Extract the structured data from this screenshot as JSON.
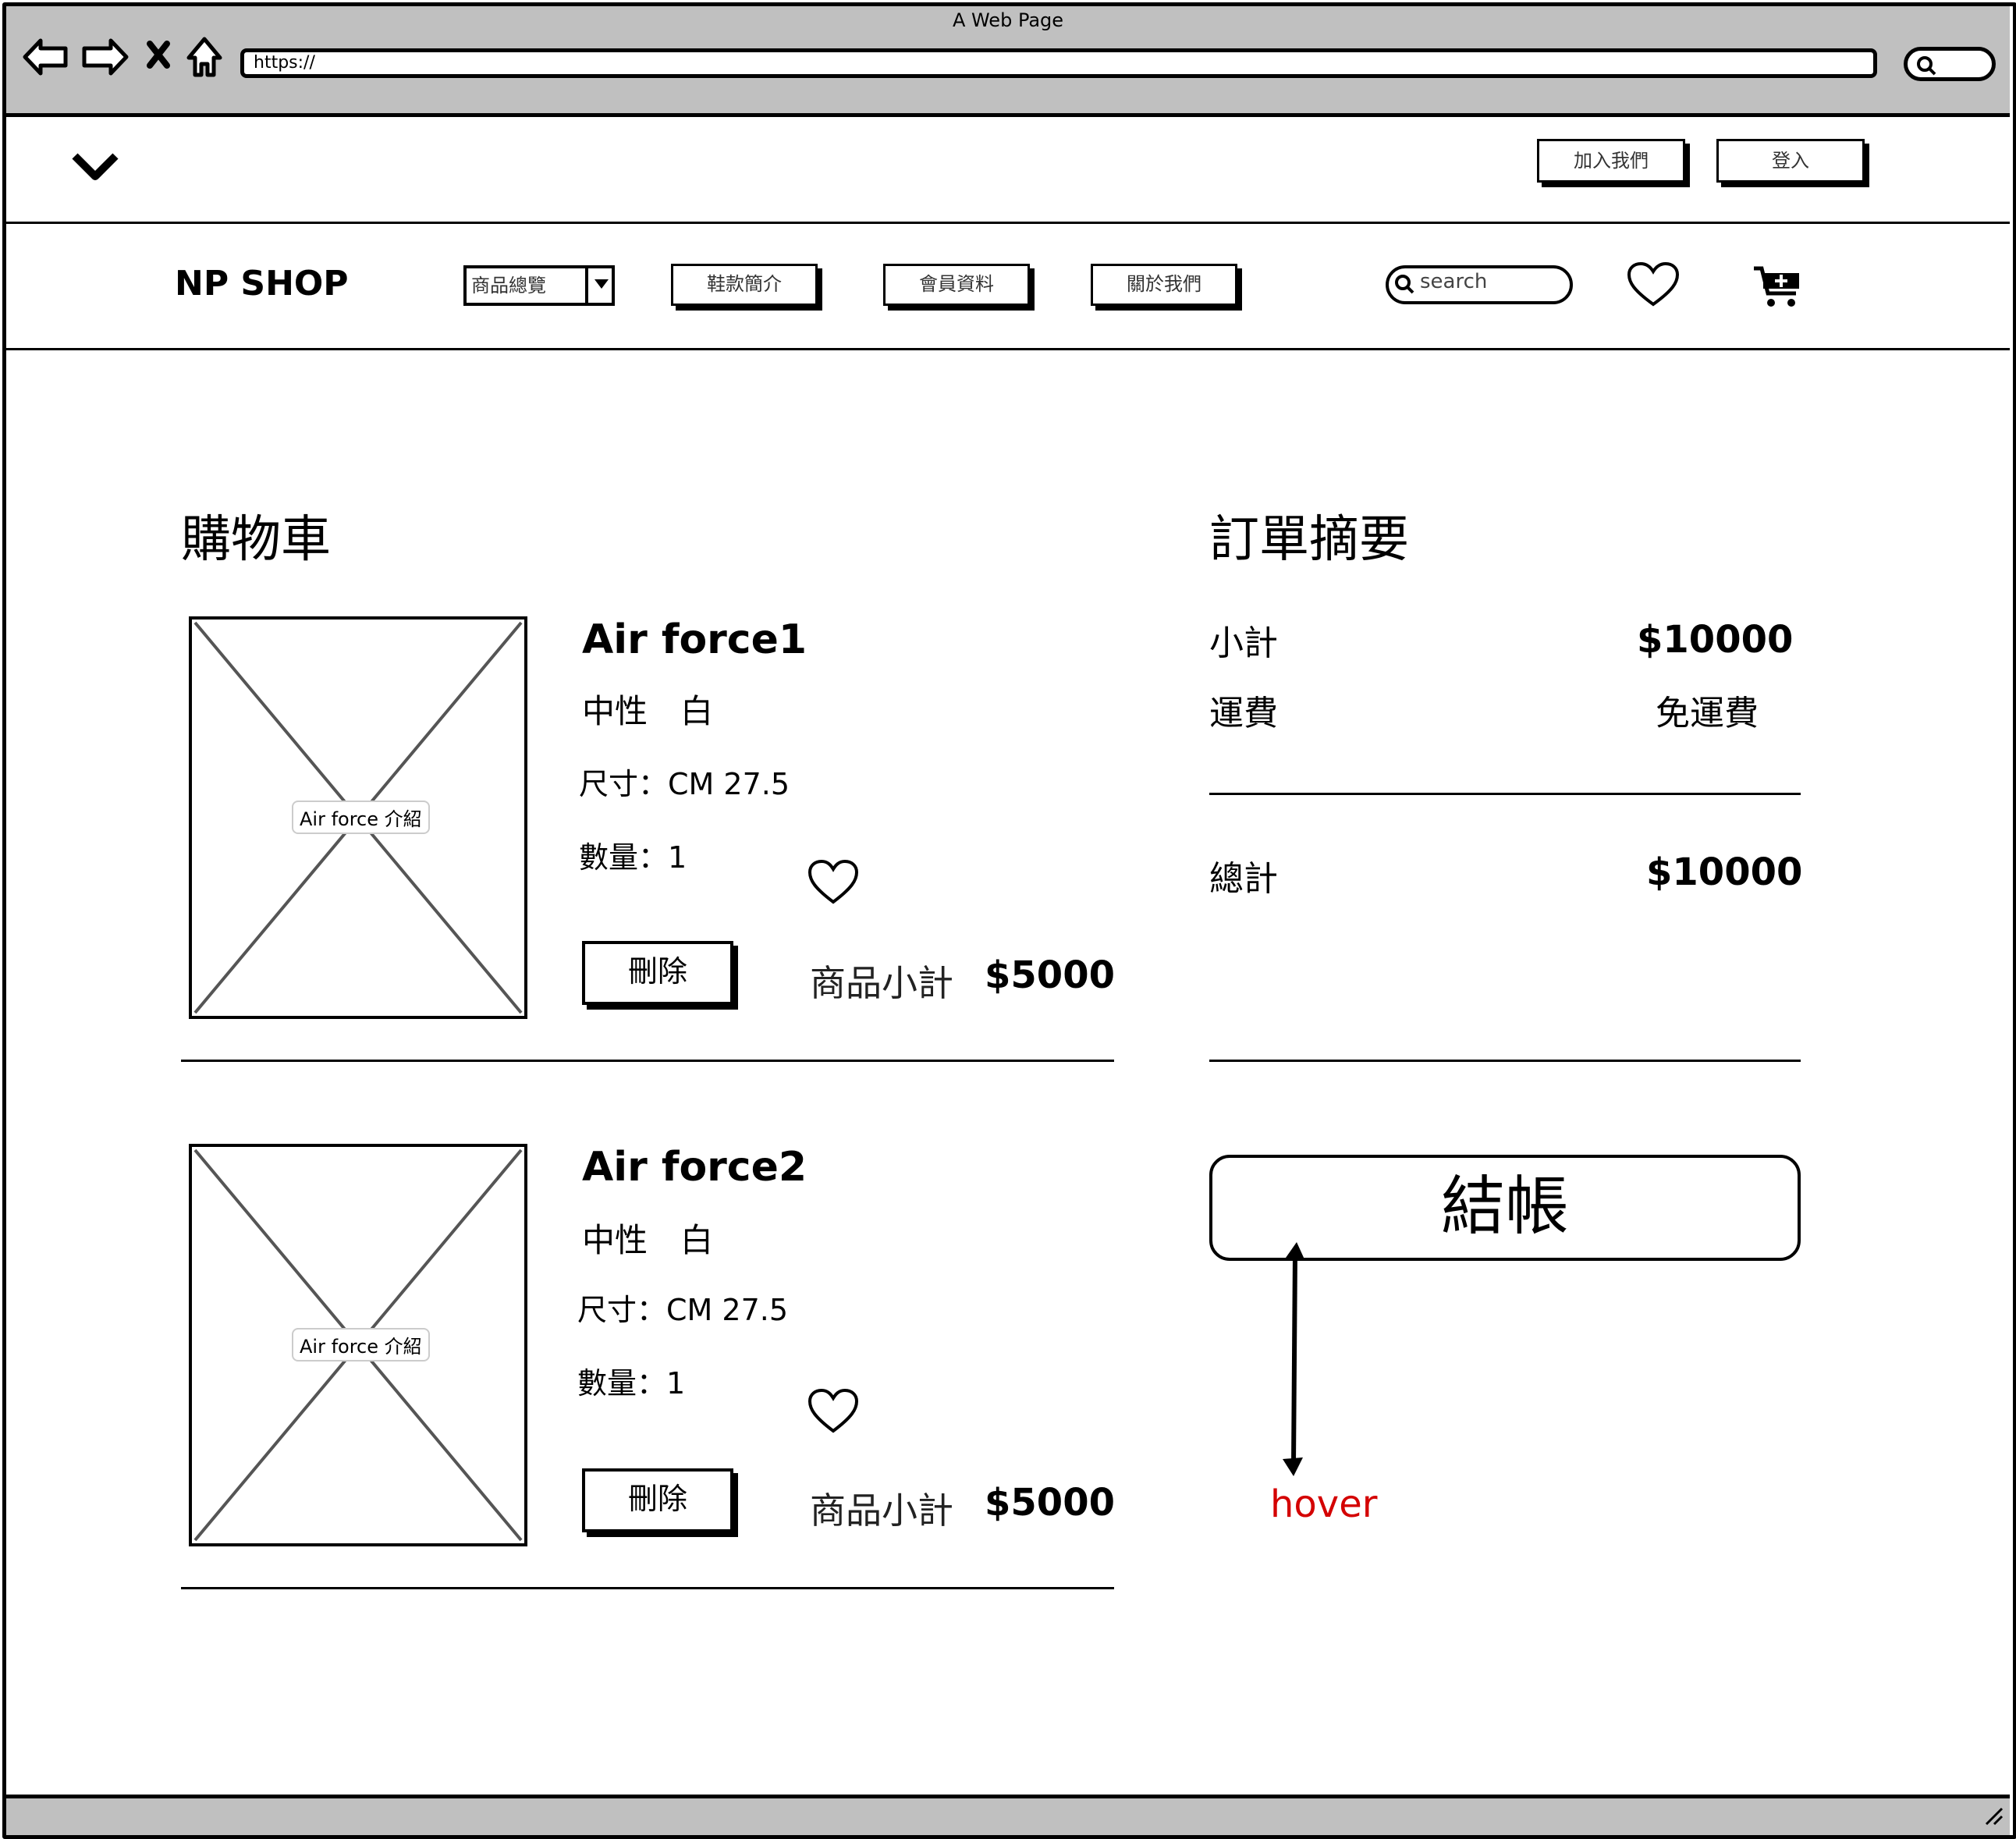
{
  "browser": {
    "window_title": "A Web Page",
    "url": "https://"
  },
  "topbar": {
    "join_label": "加入我們",
    "login_label": "登入"
  },
  "nav": {
    "logo": "NP SHOP",
    "dropdown_value": "商品總覽",
    "links": [
      "鞋款簡介",
      "會員資料",
      "關於我們"
    ],
    "search_placeholder": "search"
  },
  "cart": {
    "title": "購物車",
    "items": [
      {
        "image_caption": "Air force 介紹",
        "name": "Air force1",
        "attrs": "中性　白",
        "size": "尺寸：CM 27.5",
        "qty": "數量：1",
        "delete_label": "刪除",
        "subtotal_label": "商品小計",
        "subtotal_value": "$5000"
      },
      {
        "image_caption": "Air force 介紹",
        "name": "Air force2",
        "attrs": "中性　白",
        "size": "尺寸：CM 27.5",
        "qty": "數量：1",
        "delete_label": "刪除",
        "subtotal_label": "商品小計",
        "subtotal_value": "$5000"
      }
    ]
  },
  "summary": {
    "title": "訂單摘要",
    "subtotal_label": "小計",
    "subtotal_value": "$10000",
    "shipping_label": "運費",
    "shipping_value": "免運費",
    "total_label": "總計",
    "total_value": "$10000",
    "checkout_label": "結帳",
    "annotation": "hover",
    "annotation_color": "#d40000"
  }
}
